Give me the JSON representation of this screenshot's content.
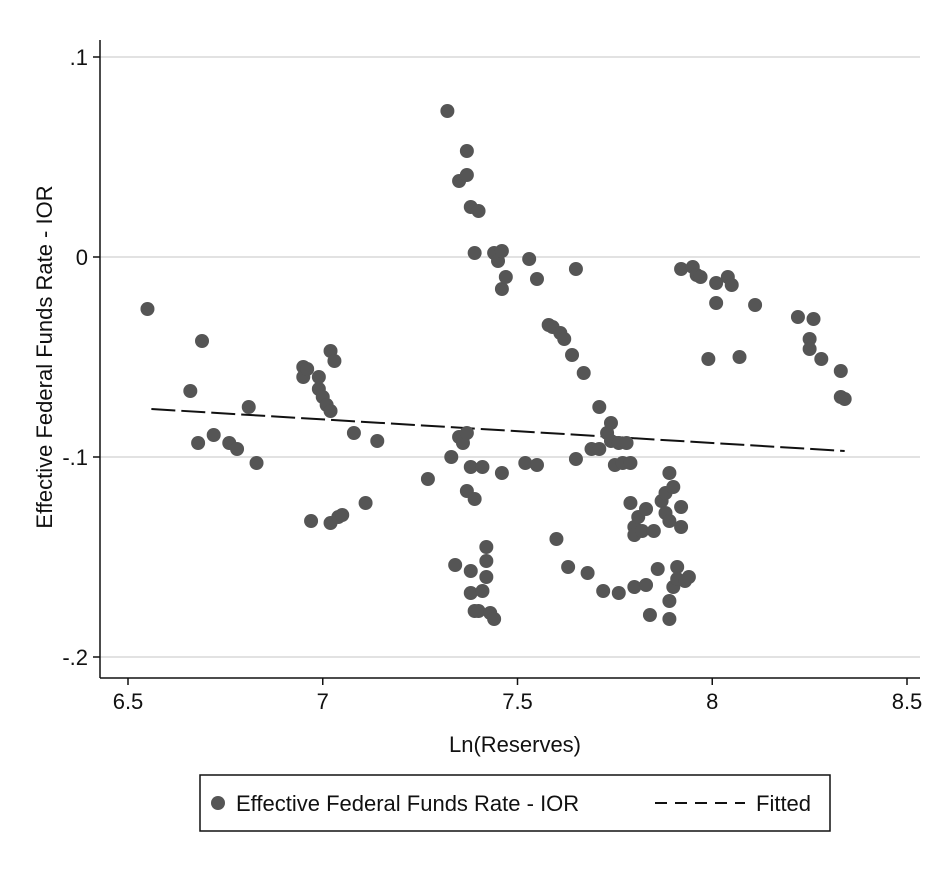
{
  "chart_data": {
    "type": "scatter",
    "title": "",
    "xlabel": "Ln(Reserves)",
    "ylabel": "Effective Federal Funds Rate - IOR",
    "xlim": [
      6.5,
      8.5
    ],
    "ylim": [
      -0.2,
      0.1
    ],
    "x_ticks": [
      6.5,
      7,
      7.5,
      8,
      8.5
    ],
    "x_tick_labels": [
      "6.5",
      "7",
      "7.5",
      "8",
      "8.5"
    ],
    "y_ticks": [
      0.1,
      0,
      -0.1,
      -0.2
    ],
    "y_tick_labels": [
      ".1",
      "0",
      "-.1",
      "-.2"
    ],
    "grid": "horizontal",
    "legend_position": "bottom",
    "series": [
      {
        "name": "Effective Federal Funds Rate - IOR",
        "kind": "scatter",
        "color": "#555555",
        "points": [
          [
            6.55,
            -0.026
          ],
          [
            6.66,
            -0.067
          ],
          [
            6.68,
            -0.093
          ],
          [
            6.69,
            -0.042
          ],
          [
            6.72,
            -0.089
          ],
          [
            6.76,
            -0.093
          ],
          [
            6.78,
            -0.096
          ],
          [
            6.81,
            -0.075
          ],
          [
            6.83,
            -0.103
          ],
          [
            6.95,
            -0.055
          ],
          [
            6.95,
            -0.06
          ],
          [
            6.96,
            -0.056
          ],
          [
            6.97,
            -0.132
          ],
          [
            6.99,
            -0.066
          ],
          [
            6.99,
            -0.06
          ],
          [
            7.0,
            -0.07
          ],
          [
            7.01,
            -0.074
          ],
          [
            7.02,
            -0.077
          ],
          [
            7.02,
            -0.047
          ],
          [
            7.02,
            -0.133
          ],
          [
            7.03,
            -0.052
          ],
          [
            7.04,
            -0.13
          ],
          [
            7.05,
            -0.129
          ],
          [
            7.08,
            -0.088
          ],
          [
            7.11,
            -0.123
          ],
          [
            7.14,
            -0.092
          ],
          [
            7.27,
            -0.111
          ],
          [
            7.32,
            0.073
          ],
          [
            7.33,
            -0.1
          ],
          [
            7.34,
            -0.154
          ],
          [
            7.35,
            -0.09
          ],
          [
            7.35,
            0.038
          ],
          [
            7.36,
            -0.09
          ],
          [
            7.36,
            -0.093
          ],
          [
            7.37,
            -0.088
          ],
          [
            7.37,
            0.041
          ],
          [
            7.37,
            0.053
          ],
          [
            7.37,
            -0.117
          ],
          [
            7.38,
            0.025
          ],
          [
            7.38,
            -0.105
          ],
          [
            7.38,
            -0.157
          ],
          [
            7.38,
            -0.168
          ],
          [
            7.39,
            0.002
          ],
          [
            7.39,
            -0.121
          ],
          [
            7.39,
            -0.177
          ],
          [
            7.4,
            0.023
          ],
          [
            7.4,
            -0.177
          ],
          [
            7.41,
            -0.105
          ],
          [
            7.41,
            -0.167
          ],
          [
            7.42,
            -0.145
          ],
          [
            7.42,
            -0.152
          ],
          [
            7.42,
            -0.16
          ],
          [
            7.43,
            -0.178
          ],
          [
            7.44,
            -0.181
          ],
          [
            7.44,
            0.002
          ],
          [
            7.45,
            -0.002
          ],
          [
            7.46,
            0.003
          ],
          [
            7.46,
            -0.016
          ],
          [
            7.46,
            -0.108
          ],
          [
            7.47,
            -0.01
          ],
          [
            7.52,
            -0.103
          ],
          [
            7.53,
            -0.001
          ],
          [
            7.55,
            -0.011
          ],
          [
            7.55,
            -0.104
          ],
          [
            7.58,
            -0.034
          ],
          [
            7.59,
            -0.035
          ],
          [
            7.6,
            -0.141
          ],
          [
            7.61,
            -0.038
          ],
          [
            7.62,
            -0.041
          ],
          [
            7.63,
            -0.155
          ],
          [
            7.64,
            -0.049
          ],
          [
            7.65,
            -0.006
          ],
          [
            7.65,
            -0.101
          ],
          [
            7.67,
            -0.058
          ],
          [
            7.68,
            -0.158
          ],
          [
            7.69,
            -0.096
          ],
          [
            7.71,
            -0.096
          ],
          [
            7.71,
            -0.075
          ],
          [
            7.72,
            -0.167
          ],
          [
            7.73,
            -0.088
          ],
          [
            7.74,
            -0.083
          ],
          [
            7.74,
            -0.092
          ],
          [
            7.75,
            -0.104
          ],
          [
            7.76,
            -0.168
          ],
          [
            7.76,
            -0.093
          ],
          [
            7.77,
            -0.103
          ],
          [
            7.78,
            -0.093
          ],
          [
            7.79,
            -0.103
          ],
          [
            7.79,
            -0.123
          ],
          [
            7.8,
            -0.135
          ],
          [
            7.8,
            -0.139
          ],
          [
            7.8,
            -0.165
          ],
          [
            7.81,
            -0.13
          ],
          [
            7.82,
            -0.137
          ],
          [
            7.83,
            -0.126
          ],
          [
            7.83,
            -0.164
          ],
          [
            7.84,
            -0.179
          ],
          [
            7.85,
            -0.137
          ],
          [
            7.86,
            -0.156
          ],
          [
            7.87,
            -0.122
          ],
          [
            7.88,
            -0.128
          ],
          [
            7.88,
            -0.118
          ],
          [
            7.89,
            -0.108
          ],
          [
            7.89,
            -0.132
          ],
          [
            7.89,
            -0.181
          ],
          [
            7.89,
            -0.172
          ],
          [
            7.9,
            -0.115
          ],
          [
            7.9,
            -0.165
          ],
          [
            7.91,
            -0.155
          ],
          [
            7.91,
            -0.161
          ],
          [
            7.92,
            -0.125
          ],
          [
            7.92,
            -0.135
          ],
          [
            7.93,
            -0.162
          ],
          [
            7.94,
            -0.16
          ],
          [
            7.92,
            -0.006
          ],
          [
            7.95,
            -0.005
          ],
          [
            7.96,
            -0.009
          ],
          [
            7.97,
            -0.01
          ],
          [
            7.99,
            -0.051
          ],
          [
            8.01,
            -0.013
          ],
          [
            8.01,
            -0.023
          ],
          [
            8.04,
            -0.01
          ],
          [
            8.05,
            -0.014
          ],
          [
            8.07,
            -0.05
          ],
          [
            8.11,
            -0.024
          ],
          [
            8.22,
            -0.03
          ],
          [
            8.25,
            -0.041
          ],
          [
            8.25,
            -0.046
          ],
          [
            8.26,
            -0.031
          ],
          [
            8.28,
            -0.051
          ],
          [
            8.33,
            -0.057
          ],
          [
            8.33,
            -0.07
          ],
          [
            8.34,
            -0.071
          ]
        ]
      },
      {
        "name": "Fitted",
        "kind": "line",
        "style": "dashed",
        "color": "#111111",
        "points": [
          [
            6.56,
            -0.076
          ],
          [
            8.34,
            -0.097
          ]
        ]
      }
    ]
  }
}
